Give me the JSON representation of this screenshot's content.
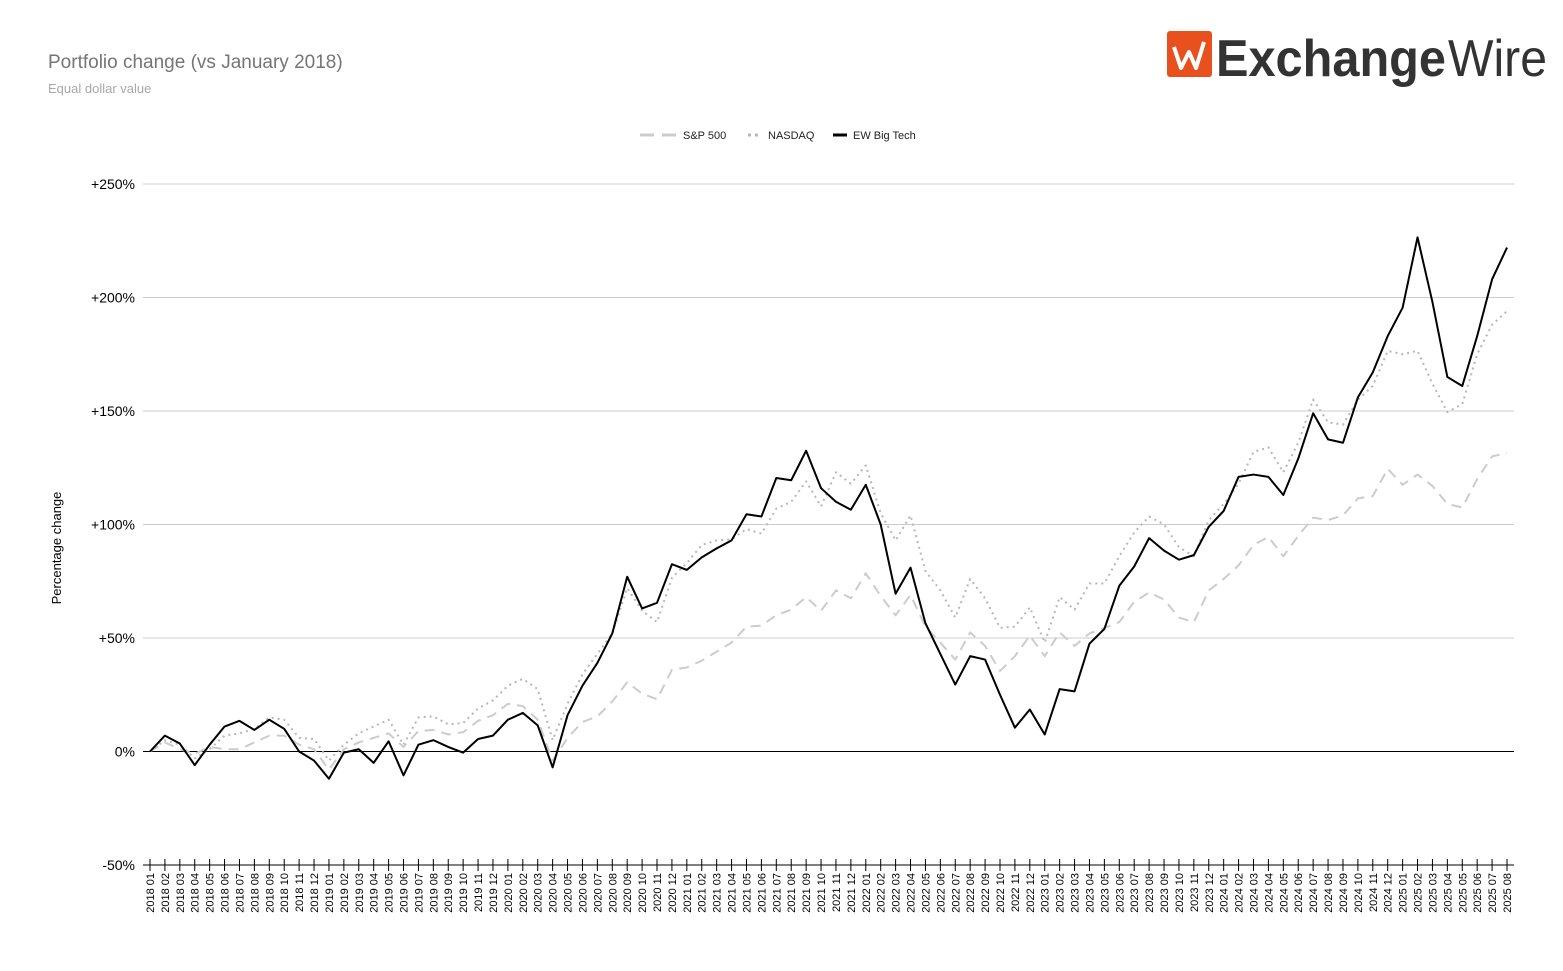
{
  "chart_data": {
    "type": "line",
    "title": "Portfolio change (vs January 2018)",
    "subtitle": "Equal dollar value",
    "logo": {
      "bold": "Exchange",
      "light": "Wire"
    },
    "y_axis_label": "Percentage change",
    "categories": [
      "2018 01",
      "2018 02",
      "2018 03",
      "2018 04",
      "2018 05",
      "2018 06",
      "2018 07",
      "2018 08",
      "2018 09",
      "2018 10",
      "2018 11",
      "2018 12",
      "2019 01",
      "2019 02",
      "2019 03",
      "2019 04",
      "2019 05",
      "2019 06",
      "2019 07",
      "2019 08",
      "2019 09",
      "2019 10",
      "2019 11",
      "2019 12",
      "2020 01",
      "2020 02",
      "2020 03",
      "2020 04",
      "2020 05",
      "2020 06",
      "2020 07",
      "2020 08",
      "2020 09",
      "2020 10",
      "2020 11",
      "2020 12",
      "2021 01",
      "2021 02",
      "2021 03",
      "2021 04",
      "2021 05",
      "2021 06",
      "2021 07",
      "2021 08",
      "2021 09",
      "2021 10",
      "2021 11",
      "2021 12",
      "2022 01",
      "2022 02",
      "2022 03",
      "2022 04",
      "2022 05",
      "2022 06",
      "2022 07",
      "2022 08",
      "2022 09",
      "2022 10",
      "2022 11",
      "2022 12",
      "2023 01",
      "2023 02",
      "2023 03",
      "2023 04",
      "2023 05",
      "2023 06",
      "2023 07",
      "2023 08",
      "2023 09",
      "2023 10",
      "2023 11",
      "2023 12",
      "2024 01",
      "2024 02",
      "2024 03",
      "2024 04",
      "2024 05",
      "2024 06",
      "2024 07",
      "2024 08",
      "2024 09",
      "2024 10",
      "2024 11",
      "2024 12",
      "2025 01",
      "2025 02",
      "2025 03",
      "2025 04",
      "2025 05",
      "2025 06",
      "2025 07",
      "2025 08"
    ],
    "series": [
      {
        "name": "S&P 500",
        "color": "#cccccc",
        "dash": "dashed",
        "values": [
          0,
          4,
          1,
          -1,
          2,
          1,
          1,
          4,
          7,
          7,
          3,
          1,
          -8,
          1,
          4,
          6,
          8,
          2,
          9,
          9.5,
          7.5,
          8.5,
          13.5,
          16,
          21,
          20,
          14,
          -4,
          6,
          13,
          15.5,
          22,
          30.5,
          25.5,
          23,
          36,
          37,
          40,
          44,
          48,
          55,
          55.5,
          60,
          62.5,
          68,
          62,
          71,
          67.5,
          78.5,
          68.5,
          60,
          69,
          55,
          48,
          40.5,
          52.5,
          46.5,
          35.5,
          42,
          51,
          42,
          52.5,
          46.5,
          52,
          54.5,
          57,
          66,
          70,
          67,
          59,
          57,
          71,
          76,
          82,
          91,
          94.5,
          86,
          95,
          103,
          102,
          104,
          111.5,
          112.5,
          124.5,
          117.5,
          122,
          117,
          109,
          107.5,
          120,
          130,
          131.5
        ]
      },
      {
        "name": "NASDAQ",
        "color": "#b7b7b7",
        "dash": "dotted",
        "values": [
          0,
          5,
          3,
          -3,
          1,
          7,
          8,
          10,
          15,
          14,
          6,
          5.5,
          -4,
          3,
          8,
          11,
          14,
          3,
          15,
          15.5,
          12,
          12.5,
          19,
          22.5,
          29,
          32,
          27.5,
          5,
          21,
          34,
          43,
          52,
          72,
          62,
          57,
          76.5,
          83,
          91,
          93,
          93.5,
          98,
          96,
          107,
          110,
          119,
          108,
          123,
          118,
          126,
          105,
          93,
          104,
          79.5,
          71,
          59,
          76,
          67.5,
          54.5,
          55,
          63.5,
          48,
          68,
          62.5,
          74,
          74,
          86,
          96.5,
          103.5,
          100,
          90,
          86,
          102,
          109,
          118,
          132,
          134,
          123,
          136,
          155,
          145,
          144,
          155,
          161,
          176.5,
          175,
          176.5,
          162,
          149.5,
          153,
          175,
          188,
          194
        ]
      },
      {
        "name": "EW Big Tech",
        "color": "#000000",
        "dash": "solid",
        "values": [
          0,
          7,
          3.5,
          -6,
          3,
          11,
          13.5,
          9.5,
          14,
          10,
          0,
          -4,
          -12,
          -0.5,
          1,
          -5,
          4.5,
          -10.5,
          3,
          5,
          2,
          -0.5,
          5.5,
          7,
          14,
          17,
          11.5,
          -7,
          16,
          29,
          39,
          52,
          77,
          63,
          65.5,
          82.5,
          80,
          85.5,
          89.5,
          93,
          104.5,
          103.5,
          120.5,
          119.5,
          132.5,
          116,
          110,
          106.5,
          117.5,
          100,
          69.5,
          81,
          56.5,
          43,
          29.5,
          42,
          40.5,
          25,
          10.5,
          18.5,
          7.5,
          27.5,
          26.5,
          47.5,
          54,
          73,
          81.5,
          94,
          88.5,
          84.5,
          86.5,
          99,
          106,
          121,
          122,
          121,
          113,
          129,
          149,
          137.5,
          136,
          156,
          167,
          183,
          195.5,
          226.5,
          198,
          165,
          161,
          183,
          208,
          222
        ]
      }
    ],
    "ylim": [
      -50,
      250
    ],
    "yticks": [
      {
        "value": -50,
        "label": "-50%"
      },
      {
        "value": 0,
        "label": "0%"
      },
      {
        "value": 50,
        "label": "+50%"
      },
      {
        "value": 100,
        "label": "+100%"
      },
      {
        "value": 150,
        "label": "+150%"
      },
      {
        "value": 200,
        "label": "+200%"
      },
      {
        "value": 250,
        "label": "+250%"
      }
    ],
    "grid": true,
    "legend": "top"
  }
}
